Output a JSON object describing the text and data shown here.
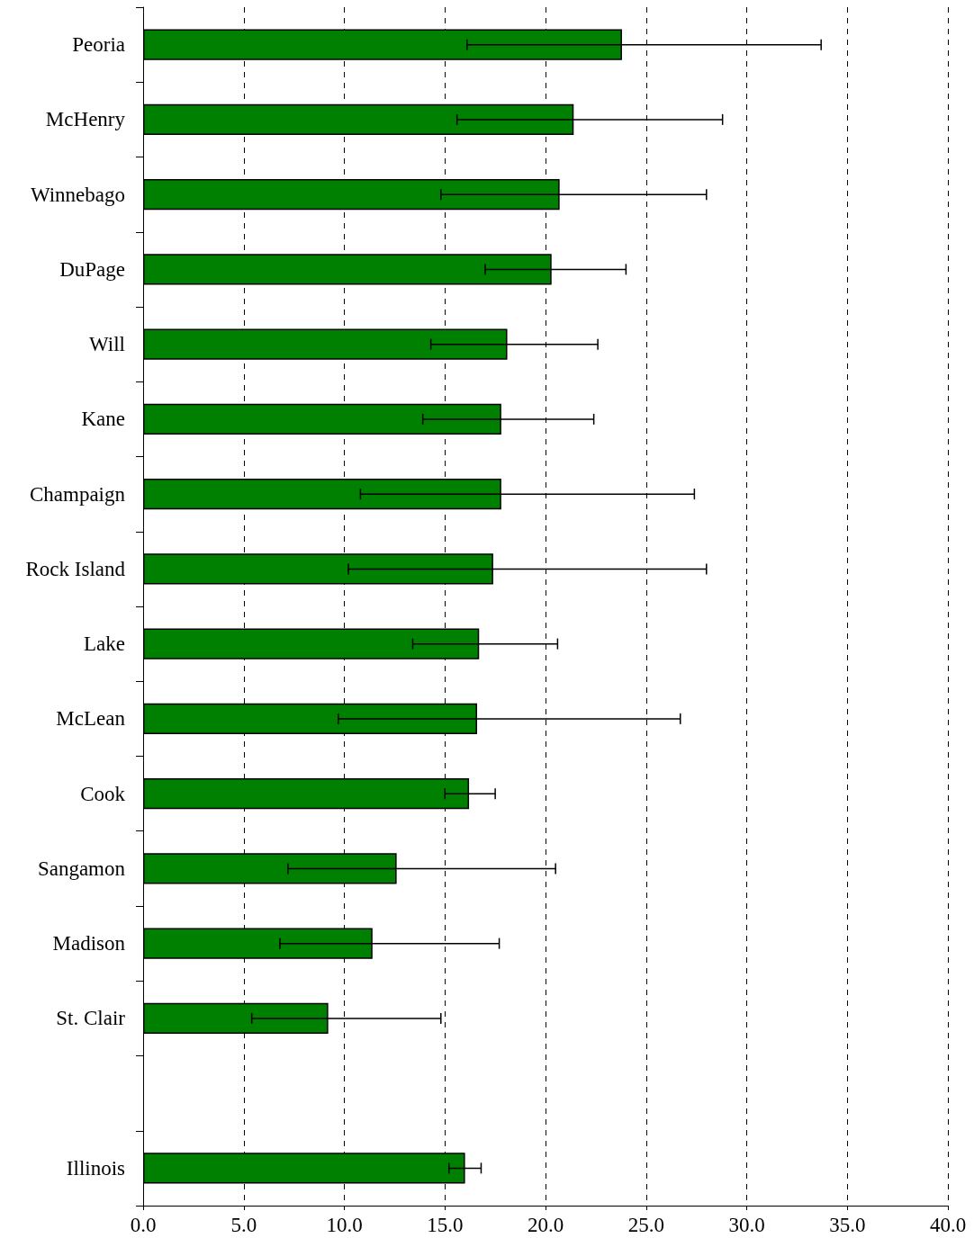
{
  "chart_data": {
    "type": "bar",
    "orientation": "horizontal",
    "categories": [
      "Peoria",
      "McHenry",
      "Winnebago",
      "DuPage",
      "Will",
      "Kane",
      "Champaign",
      "Rock Island",
      "Lake",
      "McLean",
      "Cook",
      "Sangamon",
      "Madison",
      "St. Clair",
      null,
      "Illinois"
    ],
    "values": [
      23.8,
      21.4,
      20.7,
      20.3,
      18.1,
      17.8,
      17.8,
      17.4,
      16.7,
      16.6,
      16.2,
      12.6,
      11.4,
      9.2,
      null,
      16.0
    ],
    "errors": [
      [
        16.1,
        33.7
      ],
      [
        15.6,
        28.8
      ],
      [
        14.8,
        28.0
      ],
      [
        17.0,
        24.0
      ],
      [
        14.3,
        22.6
      ],
      [
        13.9,
        22.4
      ],
      [
        10.8,
        27.4
      ],
      [
        10.2,
        28.0
      ],
      [
        13.4,
        20.6
      ],
      [
        9.7,
        26.7
      ],
      [
        15.0,
        17.5
      ],
      [
        7.2,
        20.5
      ],
      [
        6.8,
        17.7
      ],
      [
        5.4,
        14.8
      ],
      null,
      [
        15.2,
        16.8
      ]
    ],
    "color": "#008000",
    "xlim": [
      0,
      40
    ],
    "xticks": [
      {
        "value": 0,
        "label": "0.0"
      },
      {
        "value": 5,
        "label": "5.0"
      },
      {
        "value": 10,
        "label": "10.0"
      },
      {
        "value": 15,
        "label": "15.0"
      },
      {
        "value": 20,
        "label": "20.0"
      },
      {
        "value": 25,
        "label": "25.0"
      },
      {
        "value": 30,
        "label": "30.0"
      },
      {
        "value": 35,
        "label": "35.0"
      },
      {
        "value": 40,
        "label": "40.0"
      }
    ],
    "grid": "x"
  }
}
